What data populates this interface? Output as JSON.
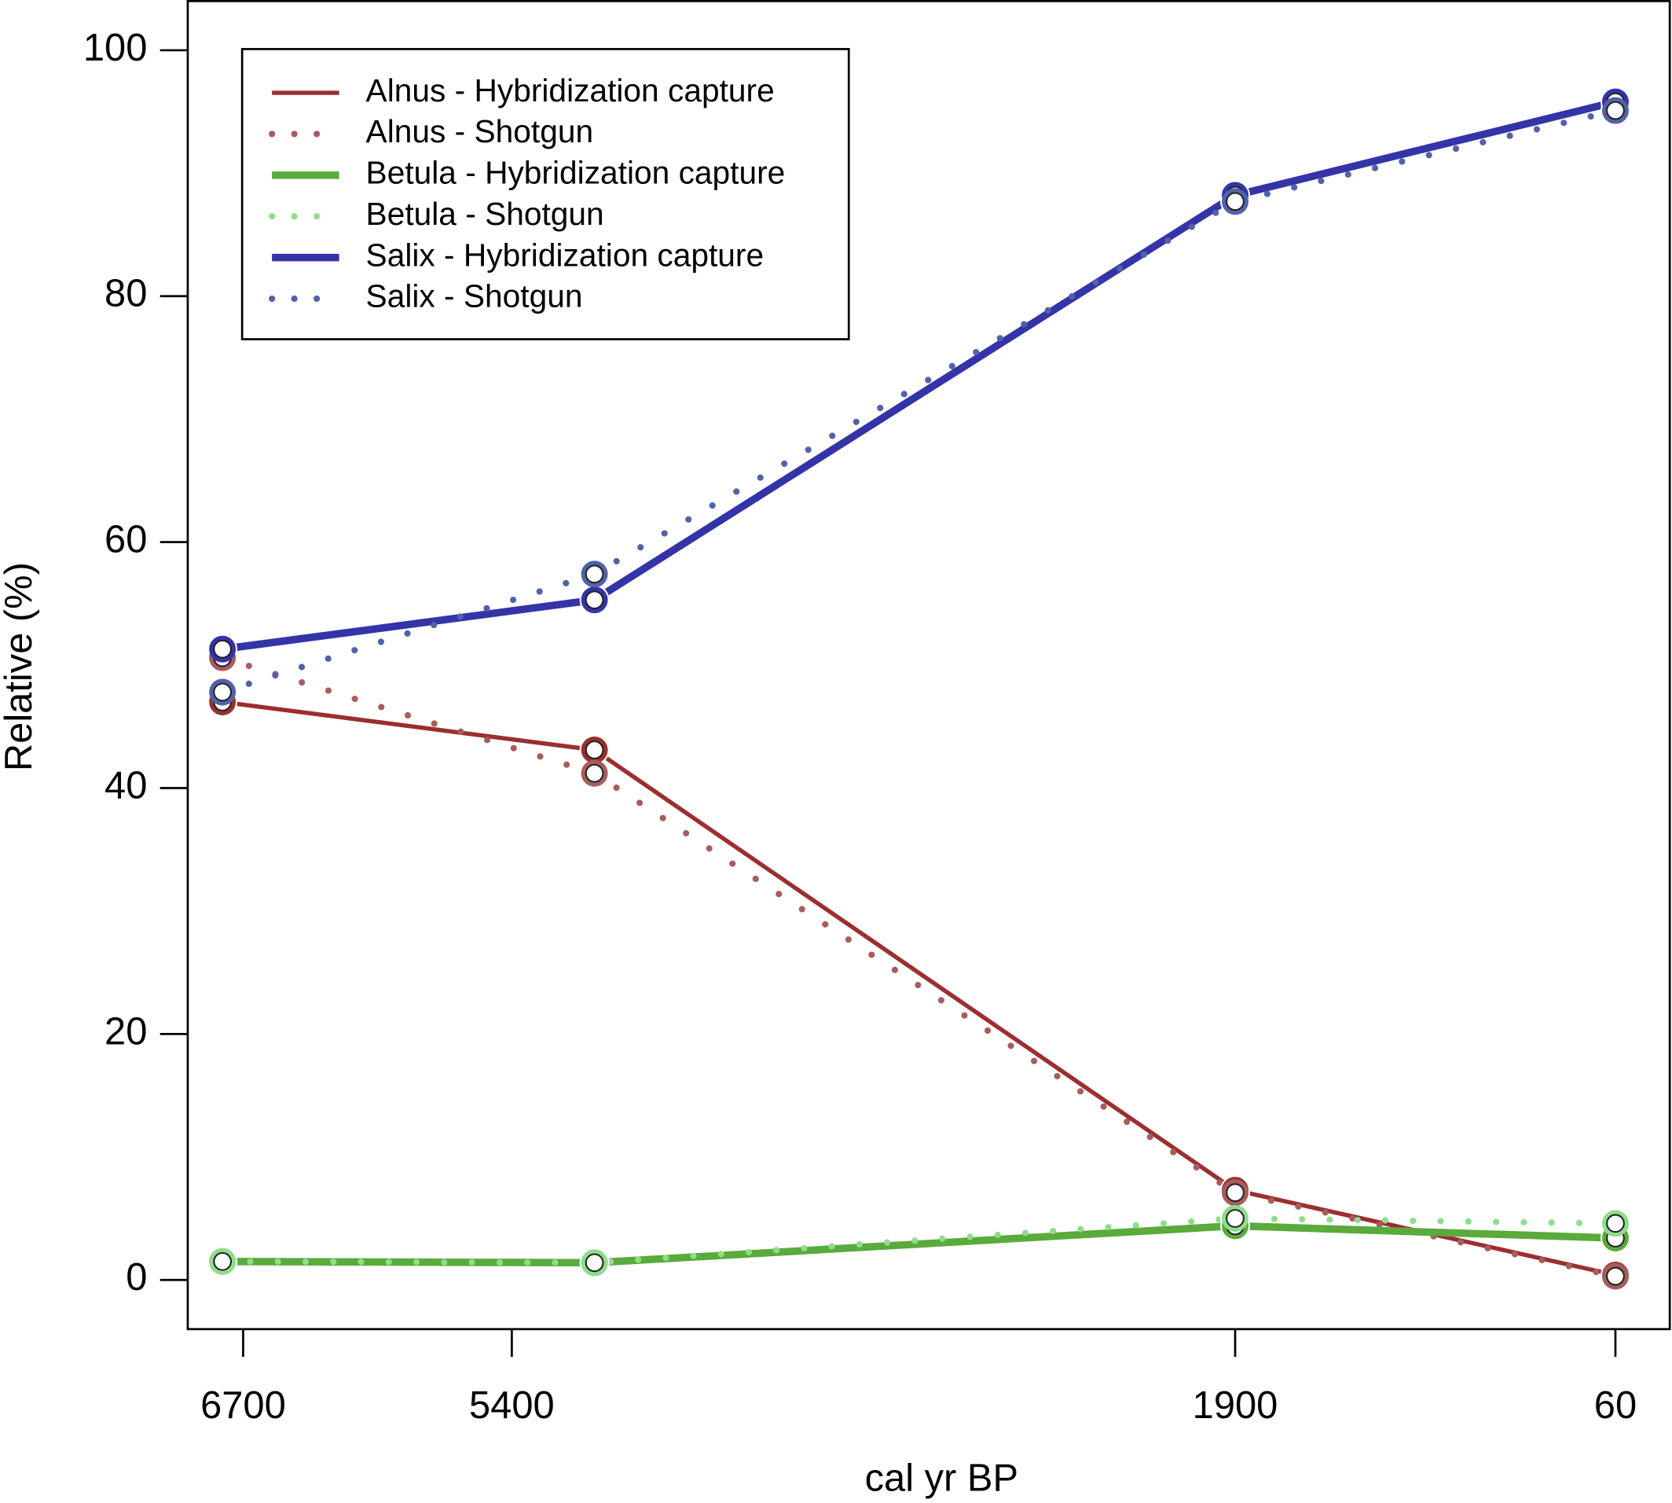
{
  "chart_data": {
    "type": "line",
    "xlabel": "cal yr BP",
    "ylabel": "Relative (%)",
    "x": [
      6800,
      5000,
      1900,
      60
    ],
    "xlim": [
      6968,
      -203
    ],
    "xticks": [
      6700,
      5400,
      1900,
      60
    ],
    "ylim": [
      -4,
      104
    ],
    "yticks": [
      0,
      20,
      40,
      60,
      80,
      100
    ],
    "legend": "topleft",
    "series": [
      {
        "name": "Alnus - Hybridization capture",
        "color": "#9b2f2f",
        "style": "solid",
        "values": [
          47.0,
          43.1,
          7.3,
          0.4
        ]
      },
      {
        "name": "Alnus - Shotgun",
        "color": "#a85c5c",
        "style": "dotted",
        "values": [
          50.6,
          41.2,
          7.1,
          0.3
        ]
      },
      {
        "name": "Betula - Hybridization capture",
        "color": "#5aaa3c",
        "style": "solid",
        "values": [
          1.5,
          1.4,
          4.4,
          3.4
        ]
      },
      {
        "name": "Betula - Shotgun",
        "color": "#8fdd8a",
        "style": "dotted",
        "values": [
          1.5,
          1.4,
          5.0,
          4.6
        ]
      },
      {
        "name": "Salix - Hybridization capture",
        "color": "#3434a8",
        "style": "solid",
        "values": [
          51.3,
          55.3,
          88.2,
          95.8
        ]
      },
      {
        "name": "Salix - Shotgun",
        "color": "#5062a8",
        "style": "dotted",
        "values": [
          47.8,
          57.4,
          87.7,
          95.1
        ]
      }
    ]
  }
}
